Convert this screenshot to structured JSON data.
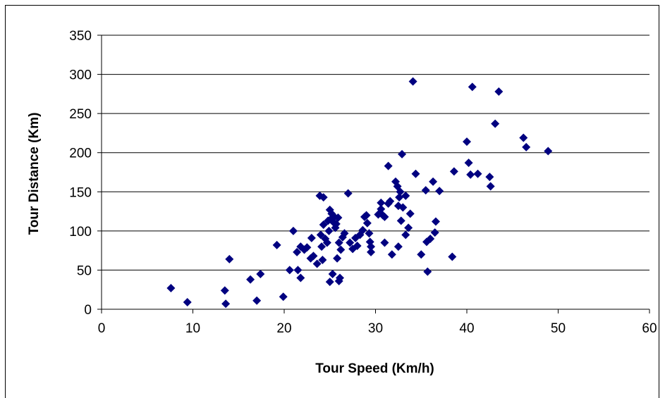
{
  "chart_data": {
    "type": "scatter",
    "xlabel": "Tour Speed (Km/h)",
    "ylabel": "Tour Distance (Km)",
    "xlim": [
      0,
      60
    ],
    "ylim": [
      0,
      350
    ],
    "x_ticks": [
      0,
      10,
      20,
      30,
      40,
      50,
      60
    ],
    "y_ticks": [
      0,
      50,
      100,
      150,
      200,
      250,
      300,
      350
    ],
    "grid": "horizontal",
    "marker": "diamond",
    "marker_color": "#000080",
    "series": [
      {
        "points": [
          [
            7.6,
            27
          ],
          [
            9.4,
            9
          ],
          [
            13.5,
            24
          ],
          [
            13.6,
            7
          ],
          [
            14.0,
            64
          ],
          [
            16.3,
            38
          ],
          [
            17.0,
            11
          ],
          [
            17.4,
            45
          ],
          [
            19.2,
            82
          ],
          [
            19.9,
            16
          ],
          [
            20.6,
            50
          ],
          [
            21.0,
            100
          ],
          [
            21.4,
            73
          ],
          [
            21.5,
            50
          ],
          [
            21.8,
            80
          ],
          [
            21.8,
            40
          ],
          [
            22.2,
            76
          ],
          [
            22.5,
            79
          ],
          [
            22.9,
            65
          ],
          [
            23.0,
            91
          ],
          [
            23.2,
            68
          ],
          [
            23.6,
            58
          ],
          [
            23.9,
            145
          ],
          [
            24.0,
            95
          ],
          [
            24.1,
            80
          ],
          [
            24.2,
            63
          ],
          [
            24.3,
            143
          ],
          [
            24.3,
            108
          ],
          [
            24.5,
            90
          ],
          [
            24.7,
            85
          ],
          [
            24.8,
            113
          ],
          [
            24.9,
            100
          ],
          [
            25.0,
            127
          ],
          [
            25.0,
            35
          ],
          [
            25.1,
            115
          ],
          [
            25.2,
            122
          ],
          [
            25.3,
            45
          ],
          [
            25.4,
            111
          ],
          [
            25.5,
            118
          ],
          [
            25.6,
            104
          ],
          [
            25.7,
            109
          ],
          [
            25.8,
            65
          ],
          [
            25.9,
            117
          ],
          [
            26.0,
            85
          ],
          [
            26.1,
            40
          ],
          [
            26.0,
            36
          ],
          [
            26.2,
            76
          ],
          [
            26.4,
            92
          ],
          [
            26.6,
            97
          ],
          [
            27.0,
            148
          ],
          [
            27.2,
            85
          ],
          [
            27.5,
            77
          ],
          [
            27.8,
            91
          ],
          [
            28.0,
            81
          ],
          [
            28.3,
            95
          ],
          [
            28.6,
            101
          ],
          [
            28.8,
            118
          ],
          [
            29.0,
            120
          ],
          [
            29.1,
            110
          ],
          [
            29.3,
            97
          ],
          [
            29.4,
            86
          ],
          [
            29.5,
            73
          ],
          [
            29.5,
            80
          ],
          [
            30.3,
            121
          ],
          [
            30.6,
            128
          ],
          [
            30.6,
            136
          ],
          [
            30.8,
            120
          ],
          [
            31.0,
            118
          ],
          [
            31.0,
            85
          ],
          [
            31.4,
            183
          ],
          [
            31.4,
            135
          ],
          [
            31.6,
            138
          ],
          [
            31.8,
            70
          ],
          [
            32.2,
            163
          ],
          [
            32.4,
            157
          ],
          [
            32.5,
            80
          ],
          [
            32.5,
            132
          ],
          [
            32.6,
            143
          ],
          [
            32.7,
            150
          ],
          [
            32.8,
            113
          ],
          [
            32.9,
            198
          ],
          [
            33.0,
            130
          ],
          [
            33.3,
            95
          ],
          [
            33.3,
            145
          ],
          [
            33.6,
            104
          ],
          [
            33.8,
            122
          ],
          [
            34.1,
            291
          ],
          [
            34.4,
            173
          ],
          [
            35.0,
            70
          ],
          [
            35.5,
            152
          ],
          [
            35.6,
            86
          ],
          [
            35.7,
            48
          ],
          [
            36.0,
            90
          ],
          [
            36.3,
            163
          ],
          [
            36.5,
            98
          ],
          [
            36.6,
            112
          ],
          [
            37.0,
            151
          ],
          [
            38.4,
            67
          ],
          [
            38.6,
            176
          ],
          [
            40.0,
            214
          ],
          [
            40.2,
            187
          ],
          [
            40.4,
            172
          ],
          [
            40.6,
            284
          ],
          [
            41.2,
            173
          ],
          [
            42.5,
            169
          ],
          [
            42.6,
            157
          ],
          [
            43.1,
            237
          ],
          [
            43.5,
            278
          ],
          [
            46.2,
            219
          ],
          [
            46.5,
            207
          ],
          [
            48.9,
            202
          ]
        ]
      }
    ]
  }
}
